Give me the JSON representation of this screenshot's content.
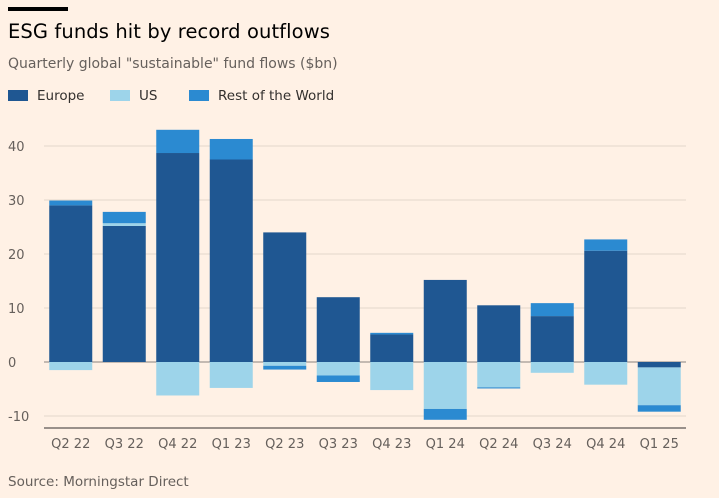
{
  "header": {
    "title": "ESG funds hit by record outflows",
    "subtitle": "Quarterly global \"sustainable\" fund flows ($bn)"
  },
  "legend": {
    "items": [
      {
        "label": "Europe",
        "color": "#1f5792"
      },
      {
        "label": "US",
        "color": "#9dd4ea"
      },
      {
        "label": "Rest of the World",
        "color": "#2b8ad1"
      }
    ]
  },
  "footer": {
    "source": "Source: Morningstar Direct"
  },
  "chart_data": {
    "type": "bar",
    "stacked": true,
    "categories": [
      "Q2 22",
      "Q3 22",
      "Q4 22",
      "Q1 23",
      "Q2 23",
      "Q3 23",
      "Q4 23",
      "Q1 24",
      "Q2 24",
      "Q3 24",
      "Q4 24",
      "Q1 25"
    ],
    "series": [
      {
        "name": "Europe",
        "color": "#1f5792",
        "values": [
          29,
          25.2,
          38.7,
          37.5,
          24,
          12,
          5.1,
          15.2,
          10.5,
          8.5,
          20.6,
          -1
        ]
      },
      {
        "name": "US",
        "color": "#9dd4ea",
        "values": [
          -1.5,
          0.5,
          -6.2,
          -4.8,
          -0.7,
          -2.5,
          -5.2,
          -8.7,
          -4.7,
          -2,
          -4.2,
          -7
        ]
      },
      {
        "name": "Rest of the World",
        "color": "#2b8ad1",
        "values": [
          0.9,
          2.1,
          4.3,
          3.8,
          -0.7,
          -1.2,
          0.3,
          -2,
          -0.2,
          2.4,
          2.1,
          -1.2
        ]
      }
    ],
    "yticks": [
      -10,
      0,
      10,
      20,
      30,
      40
    ],
    "ylim": [
      -11,
      44
    ],
    "grid": "horizontal",
    "legend_position": "top-left"
  }
}
